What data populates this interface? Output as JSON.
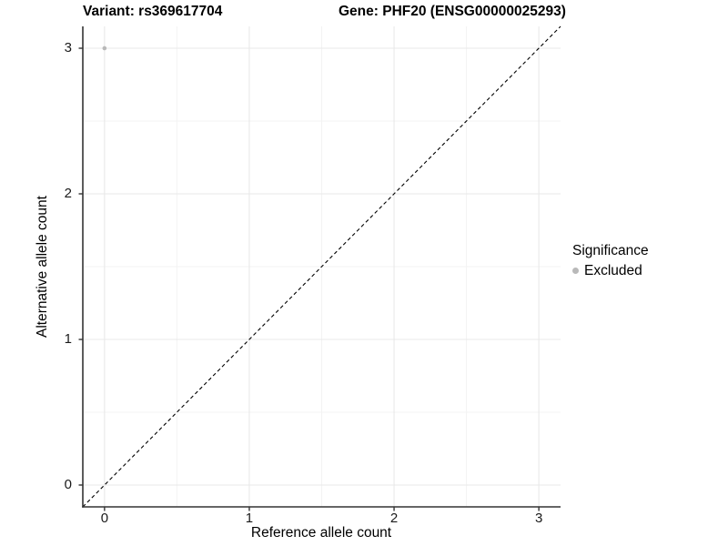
{
  "figure": {
    "titles": {
      "variant": "Variant: rs369617704",
      "gene": "Gene: PHF20 (ENSG00000025293)"
    }
  },
  "axes": {
    "x_label": "Reference allele count",
    "y_label": "Alternative allele count",
    "x_tick_labels": [
      "0",
      "1",
      "2",
      "3"
    ],
    "y_tick_labels": [
      "0",
      "1",
      "2",
      "3"
    ]
  },
  "legend": {
    "title": "Significance",
    "items": [
      {
        "label": "Excluded",
        "color": "#b9b9b9"
      }
    ]
  },
  "colors": {
    "background": "#ffffff",
    "axis_line": "#333333",
    "tick_mark": "#333333",
    "grid_major": "#e8e8e8",
    "grid_minor": "#f3f3f3",
    "identity_line": "#000000",
    "point_excluded": "#b9b9b9"
  },
  "chart_data": {
    "type": "scatter",
    "title": "Variant: rs369617704 — Gene: PHF20 (ENSG00000025293)",
    "xlabel": "Reference allele count",
    "ylabel": "Alternative allele count",
    "xlim": [
      -0.15,
      3.15
    ],
    "ylim": [
      -0.15,
      3.15
    ],
    "x_ticks": [
      0,
      1,
      2,
      3
    ],
    "y_ticks": [
      0,
      1,
      2,
      3
    ],
    "x_minor_ticks": [
      0.5,
      1.5,
      2.5
    ],
    "y_minor_ticks": [
      0.5,
      1.5,
      2.5
    ],
    "grid": "on",
    "legend_position": "right",
    "series": [
      {
        "name": "Excluded",
        "color": "#b9b9b9",
        "marker": "circle",
        "point_radius": 2.3,
        "points": [
          {
            "x": 0,
            "y": 3
          }
        ]
      }
    ],
    "reference_line": {
      "name": "identity",
      "style": "dashed",
      "color": "#000000",
      "x1": -0.15,
      "y1": -0.15,
      "x2": 3.15,
      "y2": 3.15
    }
  }
}
